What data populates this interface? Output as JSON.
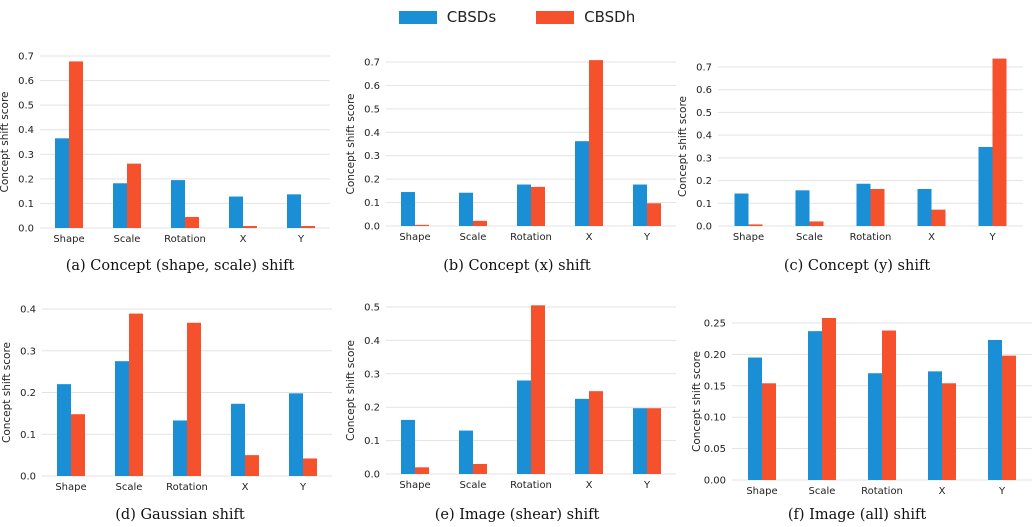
{
  "legend": [
    {
      "name": "CBSDs",
      "color": "#1a8fd6"
    },
    {
      "name": "CBSDh",
      "color": "#f4512c"
    }
  ],
  "chart_data": [
    {
      "type": "bar",
      "caption": "(a) Concept (shape, scale) shift",
      "categories": [
        "Shape",
        "Scale",
        "Rotation",
        "X",
        "Y"
      ],
      "ylabel": "Concept shift score",
      "ylim": [
        0,
        0.7
      ],
      "yticks": [
        "0.0",
        "0.1",
        "0.2",
        "0.3",
        "0.4",
        "0.5",
        "0.6",
        "0.7"
      ],
      "series": [
        {
          "name": "CBSDs",
          "values": [
            0.365,
            0.182,
            0.195,
            0.128,
            0.137
          ]
        },
        {
          "name": "CBSDh",
          "values": [
            0.678,
            0.262,
            0.045,
            0.008,
            0.008
          ]
        }
      ]
    },
    {
      "type": "bar",
      "caption": "(b) Concept (x) shift",
      "categories": [
        "Shape",
        "Scale",
        "Rotation",
        "X",
        "Y"
      ],
      "ylabel": "Concept shift score",
      "ylim": [
        0,
        0.7
      ],
      "yticks": [
        "0.0",
        "0.1",
        "0.2",
        "0.3",
        "0.4",
        "0.5",
        "0.6",
        "0.7"
      ],
      "series": [
        {
          "name": "CBSDs",
          "values": [
            0.145,
            0.142,
            0.177,
            0.362,
            0.177
          ]
        },
        {
          "name": "CBSDh",
          "values": [
            0.005,
            0.022,
            0.167,
            0.708,
            0.097
          ]
        }
      ]
    },
    {
      "type": "bar",
      "caption": "(c) Concept (y) shift",
      "categories": [
        "Shape",
        "Scale",
        "Rotation",
        "X",
        "Y"
      ],
      "ylabel": "Concept shift score",
      "ylim": [
        0,
        0.7
      ],
      "yticks": [
        "0.0",
        "0.1",
        "0.2",
        "0.3",
        "0.4",
        "0.5",
        "0.6",
        "0.7"
      ],
      "series": [
        {
          "name": "CBSDs",
          "values": [
            0.143,
            0.157,
            0.186,
            0.163,
            0.348
          ]
        },
        {
          "name": "CBSDh",
          "values": [
            0.007,
            0.02,
            0.163,
            0.072,
            0.737
          ]
        }
      ]
    },
    {
      "type": "bar",
      "caption": "(d) Gaussian shift",
      "categories": [
        "Shape",
        "Scale",
        "Rotation",
        "X",
        "Y"
      ],
      "ylabel": "Concept shift score",
      "ylim": [
        0,
        0.4
      ],
      "yticks": [
        "0.0",
        "0.1",
        "0.2",
        "0.3",
        "0.4"
      ],
      "series": [
        {
          "name": "CBSDs",
          "values": [
            0.22,
            0.275,
            0.133,
            0.173,
            0.198
          ]
        },
        {
          "name": "CBSDh",
          "values": [
            0.148,
            0.389,
            0.367,
            0.05,
            0.042
          ]
        }
      ]
    },
    {
      "type": "bar",
      "caption": "(e) Image (shear) shift",
      "categories": [
        "Shape",
        "Scale",
        "Rotation",
        "X",
        "Y"
      ],
      "ylabel": "Concept shift score",
      "ylim": [
        0,
        0.5
      ],
      "yticks": [
        "0.0",
        "0.1",
        "0.2",
        "0.3",
        "0.4",
        "0.5"
      ],
      "series": [
        {
          "name": "CBSDs",
          "values": [
            0.162,
            0.13,
            0.28,
            0.225,
            0.197
          ]
        },
        {
          "name": "CBSDh",
          "values": [
            0.02,
            0.03,
            0.505,
            0.248,
            0.197
          ]
        }
      ]
    },
    {
      "type": "bar",
      "caption": "(f) Image (all) shift",
      "categories": [
        "Shape",
        "Scale",
        "Rotation",
        "X",
        "Y"
      ],
      "ylabel": "Concept shift score",
      "ylim": [
        0,
        0.25
      ],
      "yticks": [
        "0.00",
        "0.05",
        "0.10",
        "0.15",
        "0.20",
        "0.25"
      ],
      "series": [
        {
          "name": "CBSDs",
          "values": [
            0.195,
            0.237,
            0.17,
            0.173,
            0.223
          ]
        },
        {
          "name": "CBSDh",
          "values": [
            0.154,
            0.258,
            0.238,
            0.154,
            0.198
          ]
        }
      ]
    }
  ]
}
